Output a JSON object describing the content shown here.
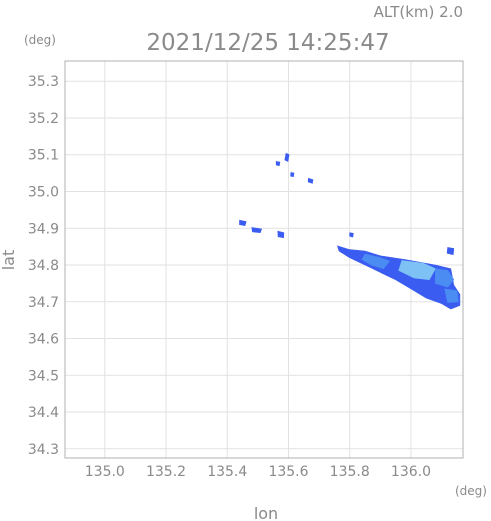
{
  "chart_data": {
    "type": "heatmap",
    "header": {
      "altitude_text": "ALT(km)  2.0",
      "timestamp": "2021/12/25 14:25:47"
    },
    "xlabel": "lon",
    "ylabel": "lat",
    "x_unit": "(deg)",
    "y_unit": "(deg)",
    "xlim": [
      134.87,
      136.17
    ],
    "ylim": [
      34.275,
      35.355
    ],
    "x_ticks": [
      135.0,
      135.2,
      135.4,
      135.6,
      135.8,
      136.0
    ],
    "x_tick_labels": [
      "135.0",
      "135.2",
      "135.4",
      "135.6",
      "135.8",
      "136.0"
    ],
    "y_ticks": [
      34.3,
      34.4,
      34.5,
      34.6,
      34.7,
      34.8,
      34.9,
      35.0,
      35.1,
      35.2,
      35.3
    ],
    "y_tick_labels": [
      "34.3",
      "34.4",
      "34.5",
      "34.6",
      "34.7",
      "34.8",
      "34.9",
      "35.0",
      "35.1",
      "35.2",
      "35.3"
    ],
    "grid": true,
    "colors": {
      "echo_low": "#3a5cf0",
      "echo_mid": "#4a8cf2",
      "echo_high": "#7ec2f5",
      "axis": "#b0b0b0",
      "text": "#8a8a8a"
    },
    "echo_patches": [
      {
        "name": "cell-nw-1",
        "points": [
          [
            135.44,
            34.922
          ],
          [
            135.462,
            34.918
          ],
          [
            135.458,
            34.907
          ],
          [
            135.44,
            34.91
          ]
        ],
        "level": 1
      },
      {
        "name": "cell-nw-2",
        "points": [
          [
            135.48,
            34.902
          ],
          [
            135.512,
            34.898
          ],
          [
            135.508,
            34.888
          ],
          [
            135.482,
            34.89
          ]
        ],
        "level": 1
      },
      {
        "name": "cell-nw-3",
        "points": [
          [
            135.565,
            34.892
          ],
          [
            135.585,
            34.888
          ],
          [
            135.584,
            34.874
          ],
          [
            135.566,
            34.877
          ]
        ],
        "level": 1
      },
      {
        "name": "cell-n-1",
        "points": [
          [
            135.592,
            35.104
          ],
          [
            135.602,
            35.1
          ],
          [
            135.598,
            35.082
          ],
          [
            135.588,
            35.086
          ]
        ],
        "level": 1
      },
      {
        "name": "cell-n-2",
        "points": [
          [
            135.56,
            35.082
          ],
          [
            135.572,
            35.08
          ],
          [
            135.57,
            35.07
          ],
          [
            135.56,
            35.072
          ]
        ],
        "level": 1
      },
      {
        "name": "cell-n-3",
        "points": [
          [
            135.608,
            35.052
          ],
          [
            135.618,
            35.05
          ],
          [
            135.616,
            35.04
          ],
          [
            135.607,
            35.042
          ]
        ],
        "level": 1
      },
      {
        "name": "cell-n-4",
        "points": [
          [
            135.665,
            35.036
          ],
          [
            135.68,
            35.032
          ],
          [
            135.678,
            35.022
          ],
          [
            135.664,
            35.026
          ]
        ],
        "level": 1
      },
      {
        "name": "band-main",
        "points": [
          [
            135.76,
            34.852
          ],
          [
            135.8,
            34.842
          ],
          [
            135.85,
            34.838
          ],
          [
            135.9,
            34.825
          ],
          [
            135.98,
            34.815
          ],
          [
            136.08,
            34.8
          ],
          [
            136.13,
            34.79
          ],
          [
            136.14,
            34.745
          ],
          [
            136.16,
            34.72
          ],
          [
            136.16,
            34.69
          ],
          [
            136.13,
            34.68
          ],
          [
            136.1,
            34.695
          ],
          [
            136.05,
            34.71
          ],
          [
            136.0,
            34.735
          ],
          [
            135.95,
            34.76
          ],
          [
            135.9,
            34.78
          ],
          [
            135.85,
            34.8
          ],
          [
            135.8,
            34.82
          ],
          [
            135.765,
            34.838
          ]
        ],
        "level": 1
      },
      {
        "name": "band-core-1",
        "points": [
          [
            135.85,
            34.83
          ],
          [
            135.9,
            34.82
          ],
          [
            135.93,
            34.81
          ],
          [
            135.91,
            34.79
          ],
          [
            135.87,
            34.8
          ],
          [
            135.84,
            34.815
          ]
        ],
        "level": 2
      },
      {
        "name": "band-core-2",
        "points": [
          [
            135.97,
            34.812
          ],
          [
            136.04,
            34.805
          ],
          [
            136.08,
            34.79
          ],
          [
            136.06,
            34.76
          ],
          [
            136.01,
            34.765
          ],
          [
            135.96,
            34.785
          ]
        ],
        "level": 3
      },
      {
        "name": "band-core-3",
        "points": [
          [
            136.08,
            34.79
          ],
          [
            136.12,
            34.785
          ],
          [
            136.14,
            34.76
          ],
          [
            136.12,
            34.74
          ],
          [
            136.08,
            34.75
          ]
        ],
        "level": 2
      },
      {
        "name": "band-core-4",
        "points": [
          [
            136.11,
            34.735
          ],
          [
            136.15,
            34.73
          ],
          [
            136.155,
            34.7
          ],
          [
            136.12,
            34.698
          ]
        ],
        "level": 2
      },
      {
        "name": "cell-e-1",
        "points": [
          [
            136.12,
            34.848
          ],
          [
            136.14,
            34.845
          ],
          [
            136.138,
            34.828
          ],
          [
            136.118,
            34.832
          ]
        ],
        "level": 1
      },
      {
        "name": "cell-e-2",
        "points": [
          [
            135.8,
            34.888
          ],
          [
            135.812,
            34.886
          ],
          [
            135.81,
            34.876
          ],
          [
            135.8,
            34.878
          ]
        ],
        "level": 1
      }
    ]
  }
}
